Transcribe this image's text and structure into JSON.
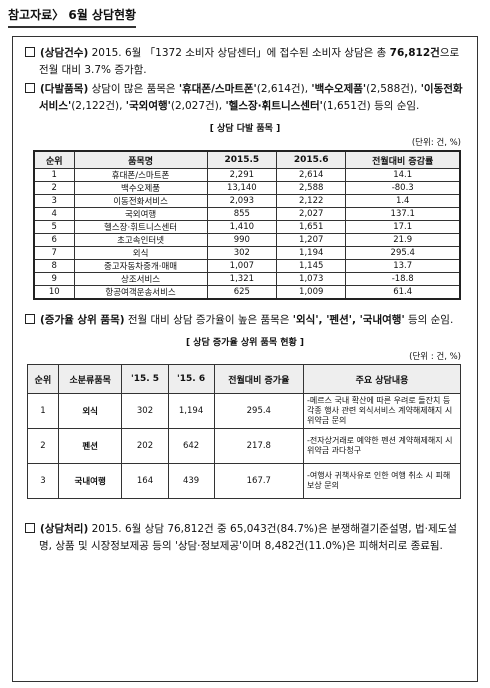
{
  "header": {
    "title": "참고자료〉 6월 상담현황"
  },
  "paragraphs": [
    {
      "parts": [
        "(상담건수)",
        " 2015. 6월 「1372 소비자 상담센터」에 접수된 소비자 상담은 총 ",
        "76,812건",
        "으로 전월 대비 3.7% 증가함."
      ]
    },
    {
      "parts": [
        "(다발품목)",
        " 상담이 많은 품목은 ",
        "'휴대폰/스마트폰'",
        "(2,614건), ",
        "'백수오제품'",
        "(2,588건), ",
        "'이동전화서비스'",
        "(2,122건), ",
        "'국외여행'",
        "(2,027건), ",
        "'헬스장·휘트니스센터'",
        "(1,651건) 등의 순임."
      ]
    },
    {
      "parts": [
        "(증가율 상위 품목)",
        " 전월 대비 상담 증가율이 높은 품목은 ",
        "'외식', '펜션', '국내여행'",
        " 등의 순임."
      ]
    },
    {
      "parts": [
        "(상담처리)",
        " 2015. 6월 상담 76,812건 중 65,043건(84.7%)은 분쟁해결기준설명, 법·제도설명, 상품 및 시장정보제공 등의 '상담·정보제공'이며 8,482건(11.0%)은 피해처리로 종료됨."
      ]
    }
  ],
  "table1": {
    "title": "[ 상담 다발 품목 ]",
    "unit": "(단위: 건, %)",
    "headers": [
      "순위",
      "품목명",
      "2015.5",
      "2015.6",
      "전월대비 증감률"
    ],
    "rows": [
      [
        "1",
        "휴대폰/스마트폰",
        "2,291",
        "2,614",
        "14.1"
      ],
      [
        "2",
        "백수오제품",
        "13,140",
        "2,588",
        "-80.3"
      ],
      [
        "3",
        "이동전화서비스",
        "2,093",
        "2,122",
        "1.4"
      ],
      [
        "4",
        "국외여행",
        "855",
        "2,027",
        "137.1"
      ],
      [
        "5",
        "헬스장·휘트니스센터",
        "1,410",
        "1,651",
        "17.1"
      ],
      [
        "6",
        "초고속인터넷",
        "990",
        "1,207",
        "21.9"
      ],
      [
        "7",
        "외식",
        "302",
        "1,194",
        "295.4"
      ],
      [
        "8",
        "중고자동차중개·매매",
        "1,007",
        "1,145",
        "13.7"
      ],
      [
        "9",
        "상조서비스",
        "1,321",
        "1,073",
        "-18.8"
      ],
      [
        "10",
        "항공여객운송서비스",
        "625",
        "1,009",
        "61.4"
      ]
    ]
  },
  "table2": {
    "title": "[ 상담 증가율 상위 품목 현황 ]",
    "unit": "(단위 : 건, %)",
    "headers": [
      "순위",
      "소분류품목",
      "'15. 5",
      "'15. 6",
      "전월대비 증가율",
      "주요 상담내용"
    ],
    "rows": [
      [
        "1",
        "외식",
        "302",
        "1,194",
        "295.4",
        "-메르스 국내 확산에 따른 우려로 돌잔치 등 각종 행사 관련 외식서비스 계약해제해지 시 위약금 문의"
      ],
      [
        "2",
        "펜션",
        "202",
        "642",
        "217.8",
        "-전자상거래로 예약한 펜션 계약해제해지 시 위약금 과다청구"
      ],
      [
        "3",
        "국내여행",
        "164",
        "439",
        "167.7",
        "-여행사 귀책사유로 인한 여행 취소 시 피해보상 문의"
      ]
    ]
  }
}
